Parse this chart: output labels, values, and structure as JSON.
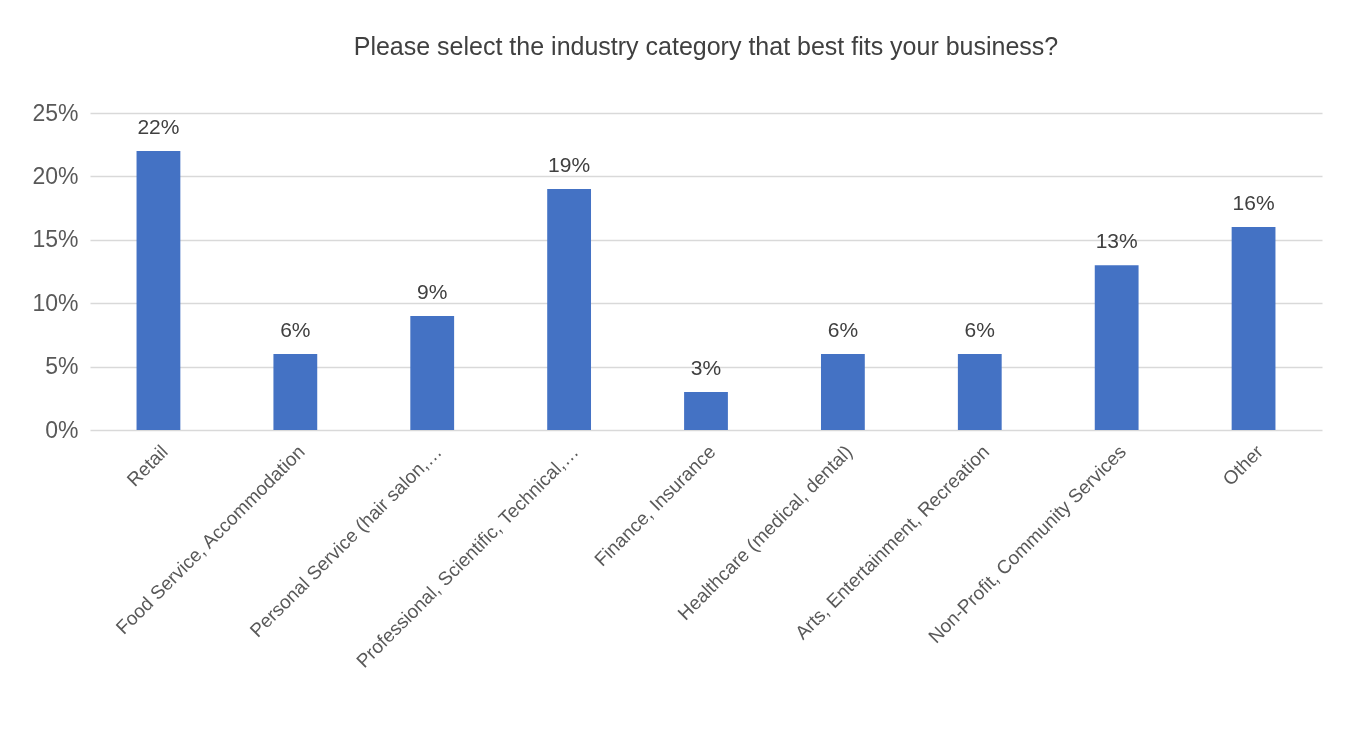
{
  "chart_data": {
    "type": "bar",
    "title": "Please select the industry category that best fits your business?",
    "categories": [
      "Retail",
      "Food Service, Accommodation",
      "Personal Service (hair salon,…",
      "Professional, Scientific, Technical,…",
      "Finance, Insurance",
      "Healthcare (medical, dental)",
      "Arts, Entertainment, Recreation",
      "Non-Profit, Community Services",
      "Other"
    ],
    "values": [
      22,
      6,
      9,
      19,
      3,
      6,
      6,
      13,
      16
    ],
    "value_labels": [
      "22%",
      "6%",
      "9%",
      "19%",
      "3%",
      "6%",
      "6%",
      "13%",
      "16%"
    ],
    "color": "#4472c4",
    "ylim": [
      0,
      25
    ],
    "yticks": [
      {
        "value": 0,
        "label": "0%"
      },
      {
        "value": 5,
        "label": "5%"
      },
      {
        "value": 10,
        "label": "10%"
      },
      {
        "value": 15,
        "label": "15%"
      },
      {
        "value": 20,
        "label": "20%"
      },
      {
        "value": 25,
        "label": "25%"
      }
    ],
    "grid": "y"
  }
}
